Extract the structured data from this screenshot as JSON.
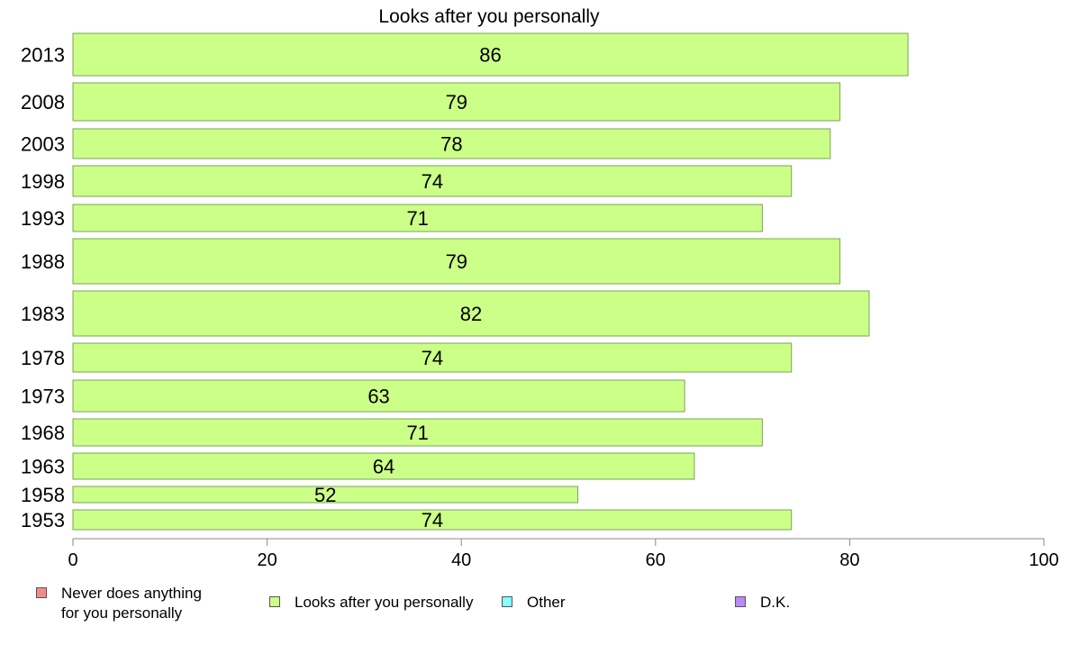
{
  "chart_data": {
    "type": "bar",
    "orientation": "horizontal",
    "title": "Looks after you personally",
    "categories": [
      "2013",
      "2008",
      "2003",
      "1998",
      "1993",
      "1988",
      "1983",
      "1978",
      "1973",
      "1968",
      "1963",
      "1958",
      "1953"
    ],
    "values": [
      86,
      79,
      78,
      74,
      71,
      79,
      82,
      74,
      63,
      71,
      64,
      52,
      74
    ],
    "xlim": [
      0,
      100
    ],
    "x_ticks": [
      "0",
      "20",
      "40",
      "60",
      "80",
      "100"
    ],
    "grid": false,
    "legend": {
      "placement": "bottom",
      "items": [
        {
          "label": "Never does anything\nfor you personally",
          "color": "#f28b8b"
        },
        {
          "label": "Looks after you personally",
          "color": "#ccff88"
        },
        {
          "label": "Other",
          "color": "#88ffff"
        },
        {
          "label": "D.K.",
          "color": "#bb88ff"
        }
      ]
    },
    "bar_color": "#ccff88",
    "bar_border_color": "#7aa35a"
  }
}
